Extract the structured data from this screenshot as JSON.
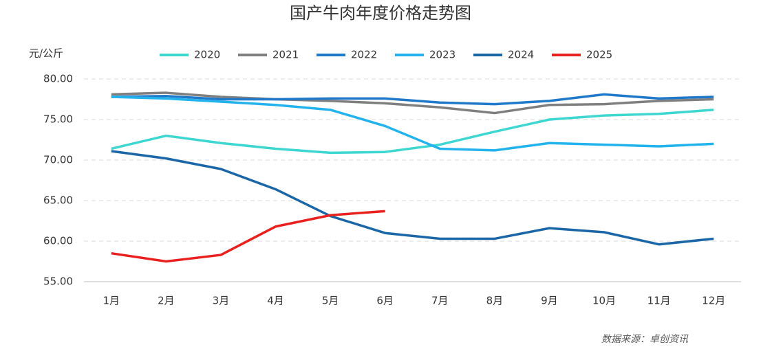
{
  "chart_data": {
    "type": "line",
    "title": "国产牛肉年度价格走势图",
    "y_label": "元/公斤",
    "source": "数据来源：卓创资讯",
    "categories": [
      "1月",
      "2月",
      "3月",
      "4月",
      "5月",
      "6月",
      "7月",
      "8月",
      "9月",
      "10月",
      "11月",
      "12月"
    ],
    "series": [
      {
        "name": "2020",
        "color": "#3dd6d0",
        "values": [
          71.4,
          73.0,
          72.1,
          71.4,
          70.9,
          71.0,
          71.9,
          73.5,
          75.0,
          75.5,
          75.7,
          76.2
        ]
      },
      {
        "name": "2021",
        "color": "#7f7f7f",
        "values": [
          78.1,
          78.3,
          77.8,
          77.5,
          77.3,
          77.0,
          76.5,
          75.8,
          76.8,
          76.9,
          77.3,
          77.5
        ]
      },
      {
        "name": "2022",
        "color": "#1f78c8",
        "values": [
          77.8,
          77.9,
          77.5,
          77.5,
          77.6,
          77.6,
          77.1,
          76.9,
          77.3,
          78.1,
          77.6,
          77.8
        ]
      },
      {
        "name": "2023",
        "color": "#22b2ec",
        "values": [
          77.8,
          77.6,
          77.2,
          76.8,
          76.2,
          74.2,
          71.4,
          71.2,
          72.1,
          71.9,
          71.7,
          72.0
        ]
      },
      {
        "name": "2024",
        "color": "#1a66a6",
        "values": [
          71.1,
          70.2,
          68.9,
          66.4,
          63.1,
          61.0,
          60.3,
          60.3,
          61.6,
          61.1,
          59.6,
          60.3
        ]
      },
      {
        "name": "2025",
        "color": "#e8201e",
        "values": [
          58.5,
          57.5,
          58.3,
          61.8,
          63.2,
          63.7,
          null,
          null,
          null,
          null,
          null,
          null
        ]
      }
    ],
    "ylim": [
      55,
      80
    ],
    "yticks": [
      {
        "value": 55,
        "label": "55.00"
      },
      {
        "value": 60,
        "label": "60.00"
      },
      {
        "value": 65,
        "label": "65.00"
      },
      {
        "value": 70,
        "label": "70.00"
      },
      {
        "value": 75,
        "label": "75.00"
      },
      {
        "value": 80,
        "label": "80.00"
      }
    ],
    "grid": true,
    "legend": "top"
  }
}
